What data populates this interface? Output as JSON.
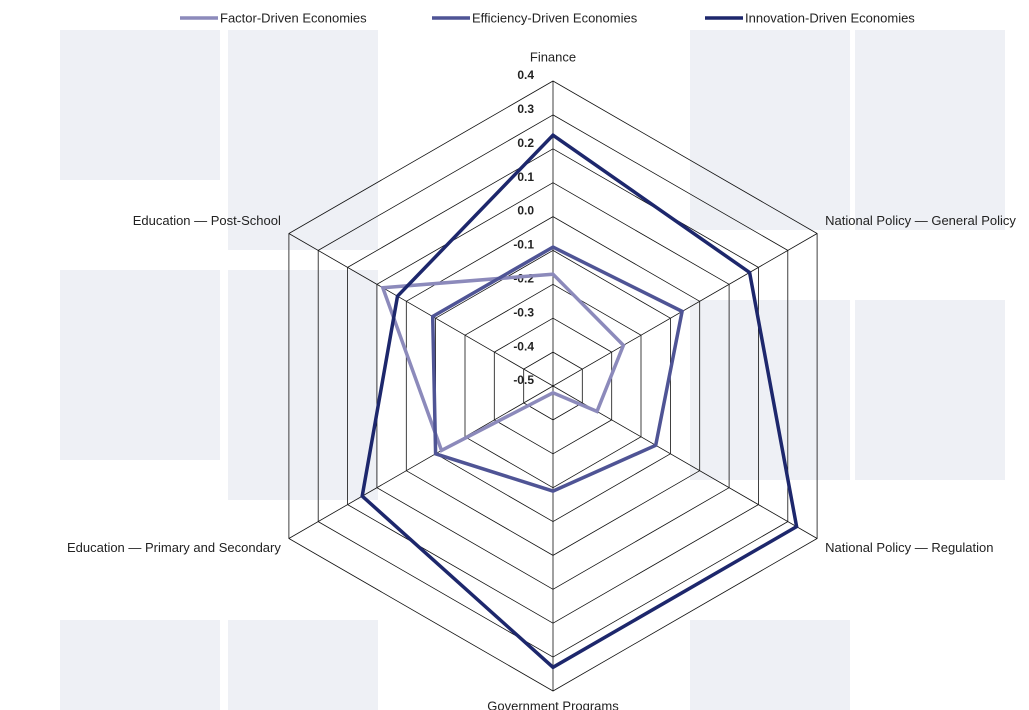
{
  "chart_data": {
    "type": "radar",
    "categories": [
      "Finance",
      "National Policy — General Policy",
      "National Policy — Regulation",
      "Government Programs",
      "Education — Primary and Secondary",
      "Education — Post-School"
    ],
    "series": [
      {
        "name": "Factor-Driven Economies",
        "color": "#8c8abb",
        "values": [
          -0.17,
          -0.26,
          -0.35,
          -0.48,
          -0.12,
          0.08
        ]
      },
      {
        "name": "Efficiency-Driven Economies",
        "color": "#4f5495",
        "values": [
          -0.09,
          -0.06,
          -0.15,
          -0.19,
          -0.1,
          -0.09
        ]
      },
      {
        "name": "Innovation-Driven Economies",
        "color": "#1d276c",
        "values": [
          0.24,
          0.17,
          0.33,
          0.33,
          0.15,
          0.03
        ]
      }
    ],
    "ylim": [
      -0.5,
      0.4
    ],
    "yticks": [
      {
        "value": 0.4,
        "label": "0.4"
      },
      {
        "value": 0.3,
        "label": "0.3"
      },
      {
        "value": 0.2,
        "label": "0.2"
      },
      {
        "value": 0.1,
        "label": "0.1"
      },
      {
        "value": 0,
        "label": "0.0"
      },
      {
        "value": -0.1,
        "label": "-0.1"
      },
      {
        "value": -0.2,
        "label": "-0.2"
      },
      {
        "value": -0.3,
        "label": "-0.3"
      },
      {
        "value": -0.4,
        "label": "-0.4"
      },
      {
        "value": -0.5,
        "label": "-0.5"
      }
    ],
    "grid": true,
    "legend": "top"
  }
}
